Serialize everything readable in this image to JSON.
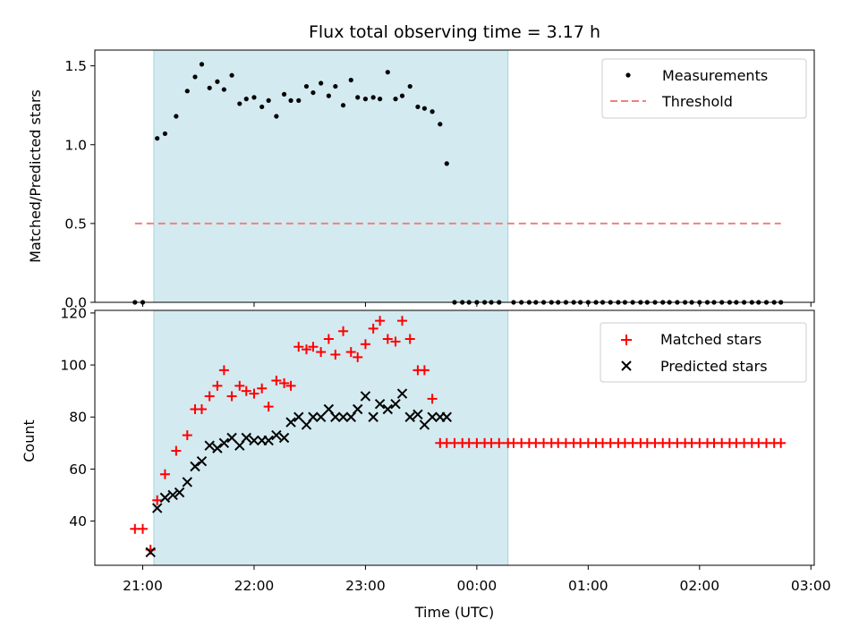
{
  "chart_data": {
    "title": "Flux total observing time = 3.17 h",
    "xlabel": "Time (UTC)",
    "x_ticks": [
      "21:00",
      "22:00",
      "23:00",
      "00:00",
      "01:00",
      "02:00",
      "03:00"
    ],
    "x_range_hours": [
      20.57,
      27.03
    ],
    "observing_window_hours": [
      21.1,
      24.28
    ],
    "window_color": "#d3eaf0",
    "panels": [
      {
        "type": "scatter",
        "ylabel": "Matched/Predicted stars",
        "ylim": [
          0,
          1.6
        ],
        "yticks": [
          0.0,
          0.5,
          1.0,
          1.5
        ],
        "ytick_labels": [
          "0.0",
          "0.5",
          "1.0",
          "1.5"
        ],
        "legend_position": "top-right",
        "series": [
          {
            "name": "Measurements",
            "marker": "dot",
            "color": "#000000",
            "x": [
              20.93,
              21.0,
              21.13,
              21.2,
              21.3,
              21.4,
              21.47,
              21.53,
              21.6,
              21.67,
              21.73,
              21.8,
              21.87,
              21.93,
              22.0,
              22.07,
              22.13,
              22.2,
              22.27,
              22.33,
              22.4,
              22.47,
              22.53,
              22.6,
              22.67,
              22.73,
              22.8,
              22.87,
              22.93,
              23.0,
              23.07,
              23.13,
              23.2,
              23.27,
              23.33,
              23.4,
              23.47,
              23.53,
              23.6,
              23.67,
              23.73,
              23.8,
              23.87,
              23.93,
              24.0,
              24.07,
              24.13,
              24.2,
              24.33,
              24.4,
              24.47,
              24.53,
              24.6,
              24.67,
              24.73,
              24.8,
              24.87,
              24.93,
              25.0,
              25.07,
              25.13,
              25.2,
              25.27,
              25.33,
              25.4,
              25.47,
              25.53,
              25.6,
              25.67,
              25.73,
              25.8,
              25.87,
              25.93,
              26.0,
              26.07,
              26.13,
              26.2,
              26.27,
              26.33,
              26.4,
              26.47,
              26.53,
              26.6,
              26.67,
              26.73
            ],
            "y": [
              0,
              0,
              1.04,
              1.07,
              1.18,
              1.34,
              1.43,
              1.51,
              1.36,
              1.4,
              1.35,
              1.44,
              1.26,
              1.29,
              1.3,
              1.24,
              1.28,
              1.18,
              1.32,
              1.28,
              1.28,
              1.37,
              1.33,
              1.39,
              1.31,
              1.37,
              1.25,
              1.41,
              1.3,
              1.29,
              1.3,
              1.29,
              1.46,
              1.29,
              1.31,
              1.37,
              1.24,
              1.23,
              1.21,
              1.13,
              0.88,
              0,
              0,
              0,
              0,
              0,
              0,
              0,
              0,
              0,
              0,
              0,
              0,
              0,
              0,
              0,
              0,
              0,
              0,
              0,
              0,
              0,
              0,
              0,
              0,
              0,
              0,
              0,
              0,
              0,
              0,
              0,
              0,
              0,
              0,
              0,
              0,
              0,
              0,
              0,
              0,
              0,
              0,
              0,
              0
            ]
          },
          {
            "name": "Threshold",
            "type": "line",
            "style": "dashed",
            "color": "#f08080",
            "x": [
              20.93,
              26.73
            ],
            "y": [
              0.5,
              0.5
            ]
          }
        ]
      },
      {
        "type": "scatter",
        "ylabel": "Count",
        "ylim": [
          23,
          121
        ],
        "yticks": [
          40,
          60,
          80,
          100,
          120
        ],
        "ytick_labels": [
          "40",
          "60",
          "80",
          "100",
          "120"
        ],
        "legend_position": "top-right",
        "series": [
          {
            "name": "Matched stars",
            "marker": "plus",
            "color": "#ff0000",
            "x": [
              20.93,
              21.0,
              21.07,
              21.13,
              21.2,
              21.3,
              21.4,
              21.47,
              21.53,
              21.6,
              21.67,
              21.73,
              21.8,
              21.87,
              21.93,
              22.0,
              22.07,
              22.13,
              22.2,
              22.27,
              22.33,
              22.4,
              22.47,
              22.53,
              22.6,
              22.67,
              22.73,
              22.8,
              22.87,
              22.93,
              23.0,
              23.07,
              23.13,
              23.2,
              23.27,
              23.33,
              23.4,
              23.47,
              23.53,
              23.6,
              23.67,
              23.73,
              23.8,
              23.87,
              23.93,
              24.0,
              24.07,
              24.13,
              24.2,
              24.28,
              24.33,
              24.4,
              24.47,
              24.53,
              24.6,
              24.67,
              24.73,
              24.8,
              24.87,
              24.93,
              25.0,
              25.07,
              25.13,
              25.2,
              25.27,
              25.33,
              25.4,
              25.47,
              25.53,
              25.6,
              25.67,
              25.73,
              25.8,
              25.87,
              25.93,
              26.0,
              26.07,
              26.13,
              26.2,
              26.27,
              26.33,
              26.4,
              26.47,
              26.53,
              26.6,
              26.67,
              26.73
            ],
            "y": [
              37,
              37,
              29,
              48,
              58,
              67,
              73,
              83,
              83,
              88,
              92,
              98,
              88,
              92,
              90,
              89,
              91,
              84,
              94,
              93,
              92,
              107,
              106,
              107,
              105,
              110,
              104,
              113,
              105,
              103,
              108,
              114,
              117,
              110,
              109,
              117,
              110,
              98,
              98,
              87,
              70,
              70,
              70,
              70,
              70,
              70,
              70,
              70,
              70,
              70,
              70,
              70,
              70,
              70,
              70,
              70,
              70,
              70,
              70,
              70,
              70,
              70,
              70,
              70,
              70,
              70,
              70,
              70,
              70,
              70,
              70,
              70,
              70,
              70,
              70,
              70,
              70,
              70,
              70,
              70,
              70,
              70,
              70,
              70,
              70,
              70,
              70
            ]
          },
          {
            "name": "Predicted stars",
            "marker": "x",
            "color": "#000000",
            "x": [
              21.07,
              21.13,
              21.2,
              21.27,
              21.33,
              21.4,
              21.47,
              21.53,
              21.6,
              21.67,
              21.73,
              21.8,
              21.87,
              21.93,
              22.0,
              22.07,
              22.13,
              22.2,
              22.27,
              22.33,
              22.4,
              22.47,
              22.53,
              22.6,
              22.67,
              22.73,
              22.8,
              22.87,
              22.93,
              23.0,
              23.07,
              23.13,
              23.2,
              23.27,
              23.33,
              23.4,
              23.47,
              23.53,
              23.6,
              23.67,
              23.73
            ],
            "y": [
              28,
              45,
              49,
              50,
              51,
              55,
              61,
              63,
              69,
              68,
              70,
              72,
              69,
              72,
              71,
              71,
              71,
              73,
              72,
              78,
              80,
              77,
              80,
              80,
              83,
              80,
              80,
              80,
              83,
              88,
              80,
              85,
              83,
              85,
              89,
              80,
              81,
              77,
              80,
              80,
              80
            ]
          }
        ]
      }
    ]
  }
}
